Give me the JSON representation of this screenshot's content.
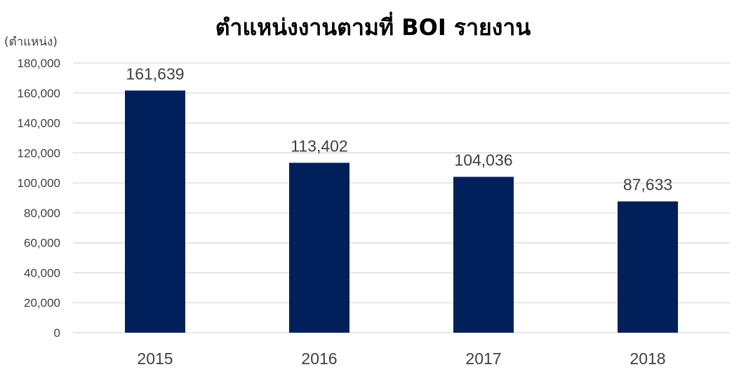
{
  "chart_data": {
    "type": "bar",
    "title": "ตำแหน่งงานตามที่ BOI รายงาน",
    "ylabel": "(ตำแหน่ง)",
    "xlabel": "",
    "categories": [
      "2015",
      "2016",
      "2017",
      "2018"
    ],
    "values": [
      161639,
      113402,
      104036,
      87633
    ],
    "value_labels": [
      "161,639",
      "113,402",
      "104,036",
      "87,633"
    ],
    "ylim": [
      0,
      180000
    ],
    "yticks": [
      0,
      20000,
      40000,
      60000,
      80000,
      100000,
      120000,
      140000,
      160000,
      180000
    ],
    "ytick_labels": [
      "0",
      "20,000",
      "40,000",
      "60,000",
      "80,000",
      "100,000",
      "120,000",
      "140,000",
      "160,000",
      "180,000"
    ],
    "grid": true,
    "legend": "none",
    "colors": {
      "bar": "#00205b",
      "grid": "#d9d9d9",
      "text": "#404040"
    }
  }
}
